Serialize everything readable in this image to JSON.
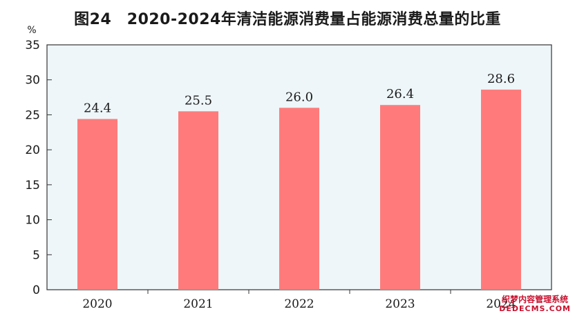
{
  "title": "图24　2020-2024年清洁能源消费量占能源消费总量的比重",
  "watermark": {
    "line1": "织梦内容管理系统",
    "line2": "DEDECMS.COM"
  },
  "chart_data": {
    "type": "bar",
    "unit": "%",
    "categories": [
      "2020",
      "2021",
      "2022",
      "2023",
      "2024"
    ],
    "values": [
      24.4,
      25.5,
      26.0,
      26.4,
      28.6
    ],
    "value_labels": [
      "24.4",
      "25.5",
      "26.0",
      "26.4",
      "28.6"
    ],
    "ylim": [
      0,
      35
    ],
    "yticks": [
      0,
      5,
      10,
      15,
      20,
      25,
      30,
      35
    ],
    "bar_color": "#ff7b7b",
    "plot_background": "#eef6f9",
    "grid": false,
    "legend": "none"
  }
}
